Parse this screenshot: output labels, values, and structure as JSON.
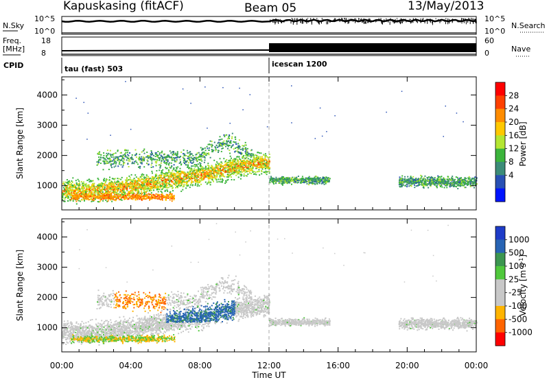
{
  "header": {
    "station": "Kapuskasing (fitACF)",
    "beam": "Beam 05",
    "date": "13/May/2013"
  },
  "strips": {
    "nsky_label": "N.Sky",
    "nsky_ticks": [
      "10^5",
      "10^0"
    ],
    "nsearch_label": "N.Search",
    "nsearch_ticks": [
      "10^5",
      "10^0"
    ],
    "freq_label": "Freq.",
    "freq_unit": "[MHz]",
    "freq_ticks": [
      "18",
      "8"
    ],
    "nave_label": "Nave",
    "nave_ticks": [
      "60",
      "0"
    ],
    "cpid_label": "CPID",
    "cpid_segments": [
      {
        "name": "tau (fast) 503",
        "start_hour": 0
      },
      {
        "name": "icescan 1200",
        "start_hour": 12
      }
    ]
  },
  "chart_data": [
    {
      "type": "heatmap",
      "name": "power-panel",
      "ylabel": "Slant Range [km]",
      "ylim": [
        200,
        4600
      ],
      "yticks": [
        1000,
        2000,
        3000,
        4000
      ],
      "xlim": [
        0,
        24
      ],
      "x_unit": "hour UT",
      "colorbar_label": "Power [dB]",
      "colorbar_ticks": [
        "28",
        "24",
        "20",
        "16",
        "12",
        "8",
        "4"
      ],
      "colorbar_colors": [
        "#ff0000",
        "#ff4000",
        "#ff8c00",
        "#ffc800",
        "#b4e632",
        "#3cb43c",
        "#3c8c78",
        "#2850b4",
        "#0014ff"
      ]
    },
    {
      "type": "heatmap",
      "name": "velocity-panel",
      "ylabel": "Slant Range [km]",
      "ylim": [
        200,
        4600
      ],
      "yticks": [
        1000,
        2000,
        3000,
        4000
      ],
      "xlim": [
        0,
        24
      ],
      "x_unit": "hour UT",
      "colorbar_label": "Velocity [m s",
      "colorbar_label_sup": "-1",
      "colorbar_label_end": "]",
      "colorbar_ticks": [
        "1000",
        "500",
        "100",
        "25",
        "-25",
        "-100",
        "-500",
        "-1000"
      ],
      "colorbar_colors": [
        "#1e3cc8",
        "#2864b4",
        "#3c9650",
        "#50c83c",
        "#c8c8c8",
        "#c8c8c8",
        "#ffb400",
        "#ff6400",
        "#ff0000"
      ]
    }
  ],
  "xaxis": {
    "label": "Time UT",
    "ticks": [
      "00:00",
      "04:00",
      "08:00",
      "12:00",
      "16:00",
      "20:00",
      "00:00"
    ],
    "tick_hours": [
      0,
      4,
      8,
      12,
      16,
      20,
      24
    ]
  }
}
